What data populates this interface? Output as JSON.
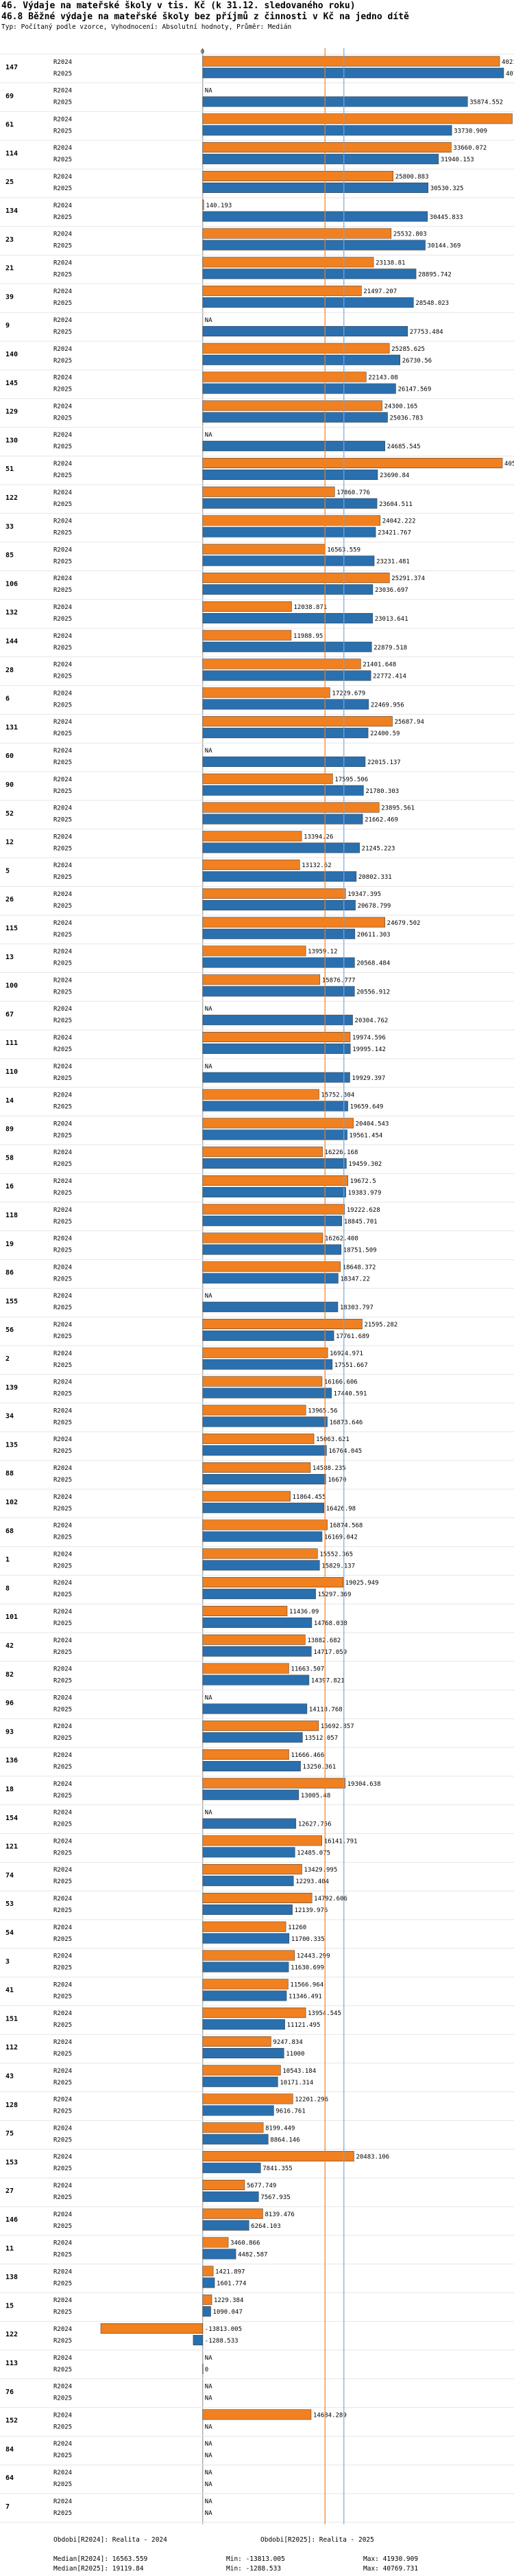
{
  "header": {
    "title_1": "46. Výdaje na mateřské školy v tis. Kč (k 31.12. sledovaného roku)",
    "title_2": "46.8 Běžné výdaje na mateřské školy bez příjmů z činnosti v Kč na jedno dítě",
    "subtitle": "Typ: Počítaný podle vzorce, Vyhodnocení: Absolutní hodnoty, Průměr: Medián"
  },
  "colors": {
    "r2024": "#f08020",
    "r2025": "#2a6fae",
    "median2024": "#f08020",
    "median2025": "#7aa6dd"
  },
  "chart_data": {
    "type": "bar",
    "orientation": "horizontal",
    "title": "46.8 Běžné výdaje na mateřské školy bez příjmů z činnosti v Kč na jedno dítě",
    "series_names": [
      "R2024",
      "R2025"
    ],
    "xlim": [
      -13813.005,
      40769.731
    ],
    "zero_label": "0",
    "na_label": "NA",
    "medians": {
      "R2024": 16563.559,
      "R2025": 19119.84
    },
    "categories": [
      "147",
      "69",
      "61",
      "114",
      "25",
      "134",
      "23",
      "21",
      "39",
      "9",
      "140",
      "145",
      "129",
      "130",
      "51",
      "122",
      "33",
      "85",
      "106",
      "132",
      "144",
      "28",
      "6",
      "131",
      "60",
      "90",
      "52",
      "12",
      "5",
      "26",
      "115",
      "13",
      "100",
      "67",
      "111",
      "110",
      "14",
      "89",
      "58",
      "16",
      "118",
      "19",
      "86",
      "155",
      "56",
      "2",
      "139",
      "34",
      "135",
      "88",
      "102",
      "68",
      "1",
      "8",
      "101",
      "42",
      "82",
      "96",
      "93",
      "136",
      "18",
      "154",
      "121",
      "74",
      "53",
      "54",
      "3",
      "41",
      "151",
      "112",
      "43",
      "128",
      "75",
      "153",
      "27",
      "146",
      "11",
      "138",
      "15",
      "122",
      "113",
      "76",
      "152",
      "84",
      "64",
      "7"
    ],
    "series": [
      {
        "name": "R2024",
        "values": [
          40216.368,
          null,
          41930.909,
          33660.072,
          25800.883,
          140.193,
          25532.803,
          23138.81,
          21497.207,
          null,
          25285.625,
          22143.08,
          24300.165,
          null,
          40588.679,
          17860.776,
          24042.222,
          16563.559,
          25291.374,
          12038.871,
          11988.95,
          21401.648,
          17229.679,
          25687.94,
          null,
          17595.506,
          23895.561,
          13394.26,
          13132.62,
          19347.395,
          24679.502,
          13959.12,
          15876.777,
          null,
          19974.596,
          null,
          15752.304,
          20404.543,
          16226.168,
          19672.5,
          19222.628,
          16262.408,
          18648.372,
          null,
          21595.282,
          16924.971,
          16166.606,
          13965.56,
          15063.621,
          14588.235,
          11864.455,
          16874.568,
          15552.365,
          19025.949,
          11436.09,
          13882.682,
          11663.507,
          null,
          15692.857,
          11666.466,
          19304.638,
          null,
          16141.791,
          13429.995,
          14792.606,
          11260,
          12443.299,
          11566.964,
          13954.545,
          9247.834,
          10543.184,
          12201.296,
          8199.449,
          20483.106,
          5677.749,
          8139.476,
          3460.866,
          1421.897,
          1229.384,
          -13813.005,
          null,
          null,
          14684.289,
          null,
          null,
          null
        ]
      },
      {
        "name": "R2025",
        "values": [
          40769.731,
          35874.552,
          33730.909,
          31940.153,
          30530.325,
          30445.833,
          30144.369,
          28895.742,
          28548.023,
          27753.484,
          26730.56,
          26147.569,
          25036.783,
          24685.545,
          23690.84,
          23604.511,
          23421.767,
          23231.481,
          23036.697,
          23013.641,
          22879.518,
          22772.414,
          22469.956,
          22400.59,
          22015.137,
          21780.303,
          21662.469,
          21245.223,
          20802.331,
          20678.799,
          20611.303,
          20568.484,
          20556.912,
          20304.762,
          19995.142,
          19929.397,
          19659.649,
          19561.454,
          19459.302,
          19383.979,
          18845.701,
          18751.509,
          18347.22,
          18303.797,
          17761.689,
          17551.667,
          17440.591,
          16873.646,
          16764.045,
          16670,
          16426.98,
          16169.042,
          15829.137,
          15297.369,
          14768.038,
          14717.059,
          14397.821,
          14118.768,
          13512.057,
          13250.361,
          13005.48,
          12627.756,
          12485.075,
          12293.404,
          12139.976,
          11700.335,
          11630.699,
          11346.491,
          11121.495,
          11000,
          10171.314,
          9616.761,
          8864.146,
          7841.355,
          7567.935,
          6264.103,
          4482.587,
          1601.774,
          1090.047,
          -1288.533,
          0,
          null,
          null,
          null,
          null,
          null
        ]
      }
    ],
    "legend": [
      {
        "label": "Obdobi[R2024]: Realita - 2024"
      },
      {
        "label": "Obdobi[R2025]: Realita - 2025"
      }
    ],
    "stats": [
      {
        "label": "Median[R2024]: 16563.559",
        "min": "Min: -13813.005",
        "max": "Max: 41930.909"
      },
      {
        "label": "Median[R2025]: 19119.84",
        "min": "Min: -1288.533",
        "max": "Max: 40769.731"
      }
    ]
  }
}
